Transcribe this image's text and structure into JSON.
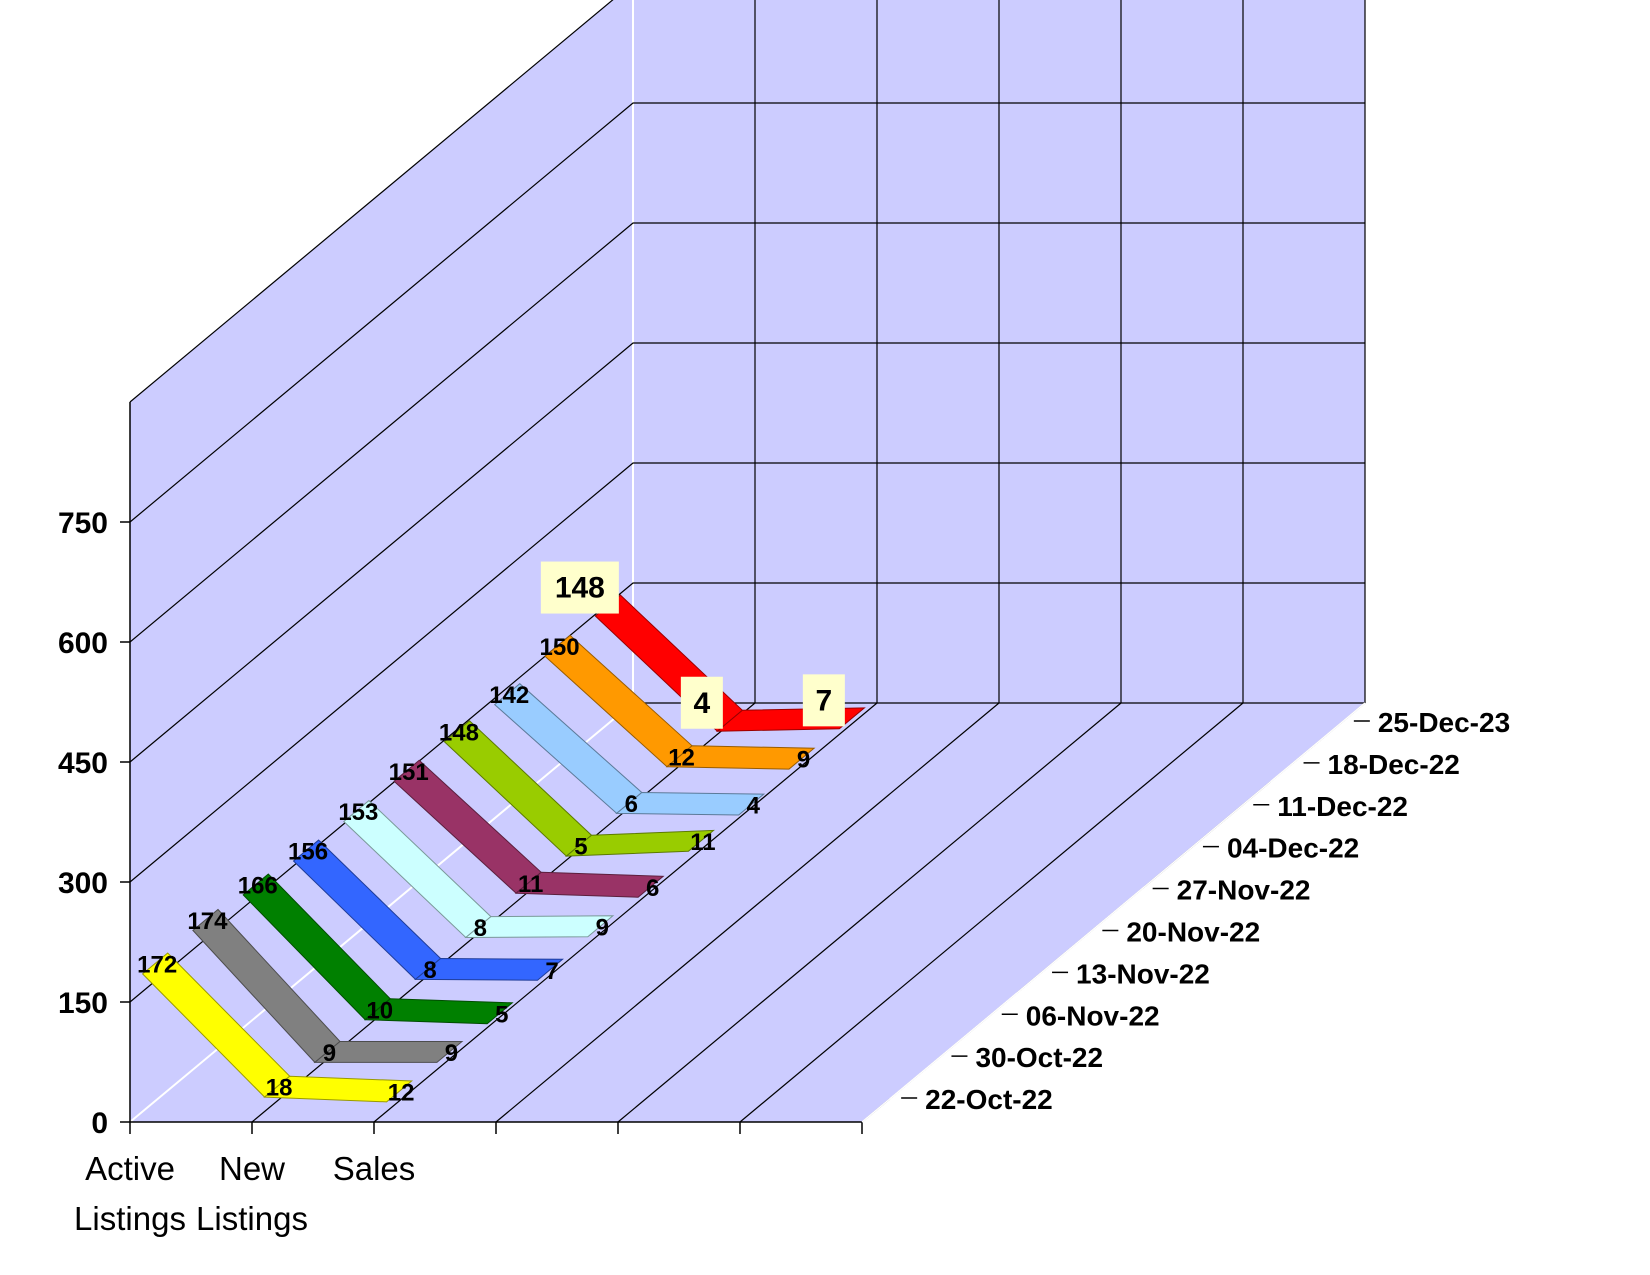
{
  "chart_data": {
    "type": "line",
    "style": "3d-ribbon",
    "categories": [
      "Active Listings",
      "New Listings",
      "Sales"
    ],
    "y_ticks": [
      "0",
      "150",
      "300",
      "450",
      "600",
      "750"
    ],
    "ylim": [
      0,
      900
    ],
    "grid": true,
    "wall_color": "#ccccff",
    "highlight_box_color": "#ffffcc",
    "series": [
      {
        "name": "22-Oct-22",
        "values": [
          172,
          18,
          12
        ],
        "color": "#ffff00"
      },
      {
        "name": "30-Oct-22",
        "values": [
          174,
          9,
          9
        ],
        "color": "#808080"
      },
      {
        "name": "06-Nov-22",
        "values": [
          166,
          10,
          5
        ],
        "color": "#008000"
      },
      {
        "name": "13-Nov-22",
        "values": [
          156,
          8,
          7
        ],
        "color": "#3366ff"
      },
      {
        "name": "20-Nov-22",
        "values": [
          153,
          8,
          9
        ],
        "color": "#ccffff"
      },
      {
        "name": "27-Nov-22",
        "values": [
          151,
          11,
          6
        ],
        "color": "#993366"
      },
      {
        "name": "04-Dec-22",
        "values": [
          148,
          5,
          11
        ],
        "color": "#99cc00"
      },
      {
        "name": "11-Dec-22",
        "values": [
          142,
          6,
          4
        ],
        "color": "#99ccff"
      },
      {
        "name": "18-Dec-22",
        "values": [
          150,
          12,
          9
        ],
        "color": "#ff9900"
      },
      {
        "name": "25-Dec-23",
        "values": [
          148,
          4,
          7
        ],
        "color": "#ff0000"
      }
    ]
  }
}
